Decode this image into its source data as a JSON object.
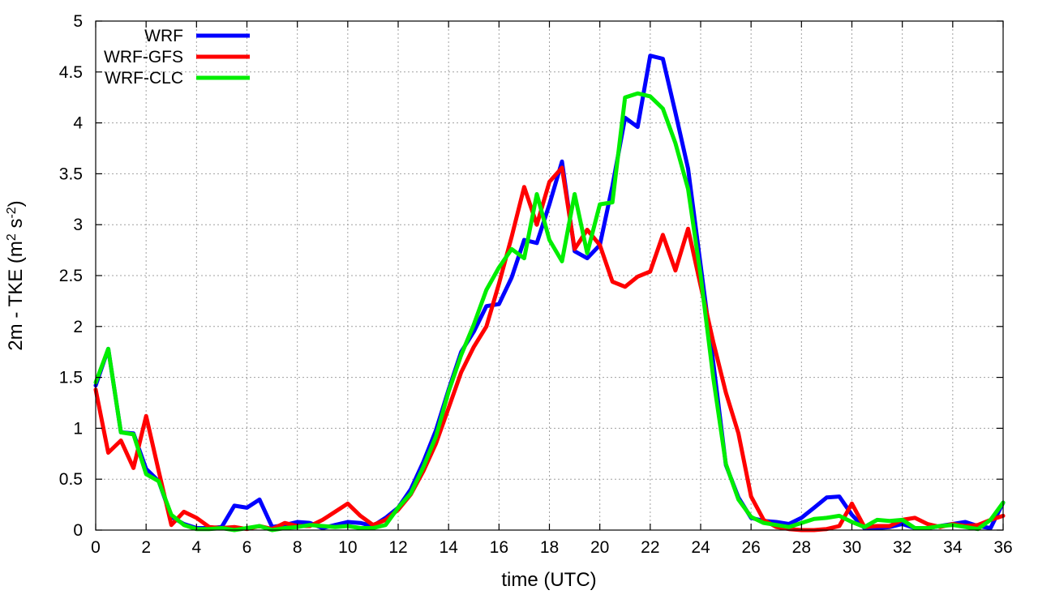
{
  "chart_data": {
    "type": "line",
    "xlabel": "time (UTC)",
    "ylabel": "2m - TKE (m",
    "ylabel_sup1": "2",
    "ylabel_mid": " s",
    "ylabel_sup2": "-2",
    "ylabel_end": ")",
    "xlim": [
      0,
      36
    ],
    "ylim": [
      0,
      5
    ],
    "xticks": [
      0,
      2,
      4,
      6,
      8,
      10,
      12,
      14,
      16,
      18,
      20,
      22,
      24,
      26,
      28,
      30,
      32,
      34,
      36
    ],
    "xtick_labels": [
      "0",
      "2",
      "4",
      "6",
      "8",
      "10",
      "12",
      "14",
      "16",
      "18",
      "20",
      "22",
      "24",
      "26",
      "28",
      "30",
      "32",
      "34",
      "36"
    ],
    "yticks": [
      0,
      0.5,
      1,
      1.5,
      2,
      2.5,
      3,
      3.5,
      4,
      4.5,
      5
    ],
    "ytick_labels": [
      "0",
      "0.5",
      "1",
      "1.5",
      "2",
      "2.5",
      "3",
      "3.5",
      "4",
      "4.5",
      "5"
    ],
    "grid": true,
    "legend_position": "top-left",
    "x": [
      0,
      0.5,
      1,
      1.5,
      2,
      2.5,
      3,
      3.5,
      4,
      4.5,
      5,
      5.5,
      6,
      6.5,
      7,
      7.5,
      8,
      8.5,
      9,
      9.5,
      10,
      10.5,
      11,
      11.5,
      12,
      12.5,
      13,
      13.5,
      14,
      14.5,
      15,
      15.5,
      16,
      16.5,
      17,
      17.5,
      18,
      18.5,
      19,
      19.5,
      20,
      20.5,
      21,
      21.5,
      22,
      22.5,
      23,
      23.5,
      24,
      24.5,
      25,
      25.5,
      26,
      26.5,
      27,
      27.5,
      28,
      28.5,
      29,
      29.5,
      30,
      30.5,
      31,
      31.5,
      32,
      32.5,
      33,
      33.5,
      34,
      34.5,
      35,
      35.5,
      36
    ],
    "series": [
      {
        "name": "WRF",
        "color": "#0000ff",
        "values": [
          1.42,
          1.78,
          0.96,
          0.95,
          0.6,
          0.48,
          0.13,
          0.06,
          0.02,
          0.02,
          0.03,
          0.24,
          0.22,
          0.3,
          0.03,
          0.05,
          0.08,
          0.07,
          0.02,
          0.05,
          0.08,
          0.07,
          0.04,
          0.12,
          0.22,
          0.4,
          0.67,
          0.98,
          1.38,
          1.75,
          1.95,
          2.2,
          2.22,
          2.48,
          2.85,
          2.82,
          3.2,
          3.62,
          2.74,
          2.67,
          2.8,
          3.38,
          4.05,
          3.96,
          4.66,
          4.63,
          4.1,
          3.55,
          2.6,
          1.65,
          0.64,
          0.32,
          0.12,
          0.09,
          0.08,
          0.06,
          0.12,
          0.22,
          0.32,
          0.33,
          0.15,
          0.02,
          0.02,
          0.03,
          0.06,
          0.02,
          0.02,
          0.04,
          0.06,
          0.08,
          0.04,
          0.02,
          0.27
        ]
      },
      {
        "name": "WRF-GFS",
        "color": "#ff0000",
        "values": [
          1.38,
          0.76,
          0.88,
          0.61,
          1.12,
          0.58,
          0.05,
          0.18,
          0.12,
          0.03,
          0.02,
          0.03,
          0.01,
          0.04,
          0.01,
          0.07,
          0.04,
          0.04,
          0.1,
          0.18,
          0.26,
          0.14,
          0.05,
          0.1,
          0.2,
          0.35,
          0.58,
          0.85,
          1.2,
          1.55,
          1.8,
          2.0,
          2.42,
          2.88,
          3.37,
          3.0,
          3.42,
          3.56,
          2.76,
          2.95,
          2.8,
          2.44,
          2.39,
          2.49,
          2.54,
          2.9,
          2.55,
          2.96,
          2.4,
          1.85,
          1.35,
          0.95,
          0.33,
          0.1,
          0.03,
          0.01,
          0.0,
          0.0,
          0.01,
          0.04,
          0.26,
          0.03,
          0.04,
          0.04,
          0.1,
          0.12,
          0.06,
          0.03,
          0.06,
          0.04,
          0.05,
          0.1,
          0.14
        ]
      },
      {
        "name": "WRF-CLC",
        "color": "#00ee00",
        "values": [
          1.45,
          1.78,
          0.96,
          0.94,
          0.55,
          0.48,
          0.15,
          0.05,
          0.01,
          0.01,
          0.02,
          0.0,
          0.02,
          0.04,
          0.0,
          0.02,
          0.03,
          0.05,
          0.04,
          0.03,
          0.04,
          0.02,
          0.02,
          0.05,
          0.22,
          0.36,
          0.62,
          0.92,
          1.36,
          1.72,
          2.02,
          2.36,
          2.58,
          2.76,
          2.67,
          3.3,
          2.85,
          2.64,
          3.3,
          2.72,
          3.2,
          3.22,
          4.25,
          4.29,
          4.26,
          4.14,
          3.8,
          3.35,
          2.5,
          1.5,
          0.65,
          0.3,
          0.13,
          0.07,
          0.05,
          0.03,
          0.07,
          0.11,
          0.12,
          0.14,
          0.08,
          0.03,
          0.1,
          0.09,
          0.1,
          0.02,
          0.02,
          0.04,
          0.05,
          0.03,
          0.01,
          0.1,
          0.27
        ]
      }
    ]
  }
}
